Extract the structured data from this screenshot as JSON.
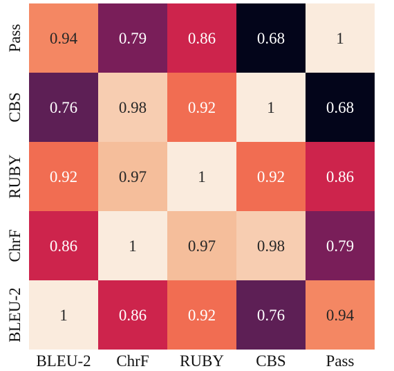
{
  "chart_data": {
    "type": "heatmap",
    "title": "",
    "xlabel": "",
    "ylabel": "",
    "x_categories": [
      "BLEU-2",
      "ChrF",
      "RUBY",
      "CBS",
      "Pass"
    ],
    "y_categories": [
      "Pass",
      "CBS",
      "RUBY",
      "ChrF",
      "BLEU-2"
    ],
    "values": [
      [
        0.94,
        0.79,
        0.86,
        0.68,
        1
      ],
      [
        0.76,
        0.98,
        0.92,
        1,
        0.68
      ],
      [
        0.92,
        0.97,
        1,
        0.92,
        0.86
      ],
      [
        0.86,
        1,
        0.97,
        0.98,
        0.79
      ],
      [
        1,
        0.86,
        0.92,
        0.76,
        0.94
      ]
    ],
    "colorbar": false,
    "colormap": "rocket",
    "value_range": [
      0.68,
      1
    ]
  }
}
